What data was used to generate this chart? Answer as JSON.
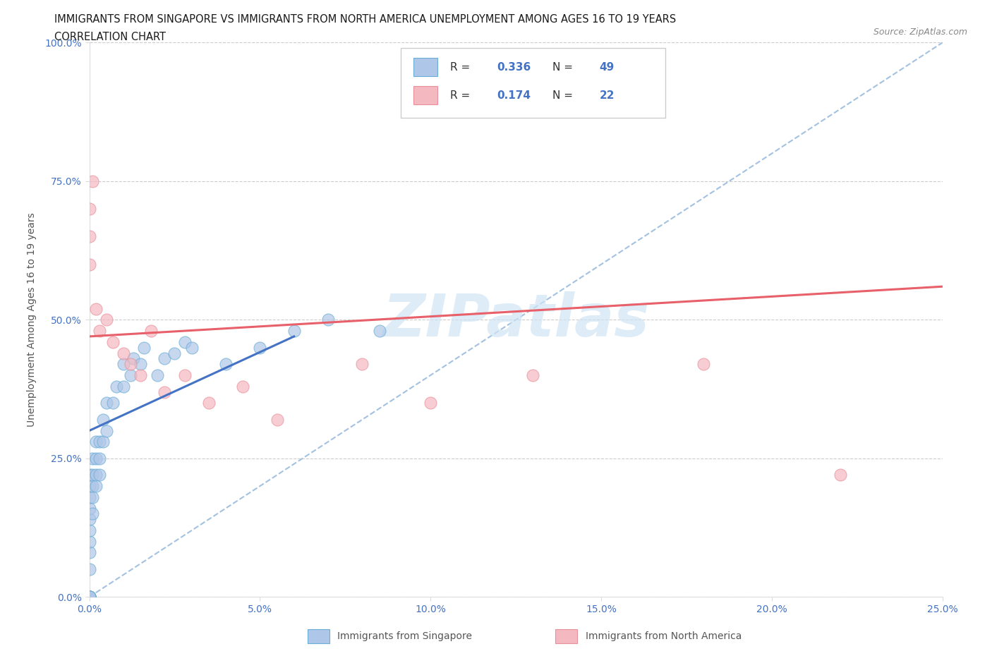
{
  "title_line1": "IMMIGRANTS FROM SINGAPORE VS IMMIGRANTS FROM NORTH AMERICA UNEMPLOYMENT AMONG AGES 16 TO 19 YEARS",
  "title_line2": "CORRELATION CHART",
  "source_text": "Source: ZipAtlas.com",
  "ylabel": "Unemployment Among Ages 16 to 19 years",
  "xlim": [
    0.0,
    0.25
  ],
  "ylim": [
    0.0,
    1.0
  ],
  "xticks": [
    0.0,
    0.05,
    0.1,
    0.15,
    0.2,
    0.25
  ],
  "yticks": [
    0.0,
    0.25,
    0.5,
    0.75,
    1.0
  ],
  "ytick_labels": [
    "0.0%",
    "25.0%",
    "50.0%",
    "75.0%",
    "100.0%"
  ],
  "xtick_labels": [
    "0.0%",
    "5.0%",
    "10.0%",
    "15.0%",
    "20.0%",
    "25.0%"
  ],
  "singapore_color": "#aec6e8",
  "singapore_edge": "#6aaed6",
  "north_america_color": "#f4b8c1",
  "north_america_edge": "#e8909a",
  "singapore_R": 0.336,
  "singapore_N": 49,
  "north_america_R": 0.174,
  "north_america_N": 22,
  "trend_singapore_color": "#4472c4",
  "trend_north_america_color": "#e8606a",
  "ref_line_color": "#99bbdd",
  "watermark_color": "#d0e4f5",
  "background_color": "#ffffff",
  "legend_color": "#4472c4",
  "singapore_x": [
    0.0,
    0.0,
    0.0,
    0.0,
    0.0,
    0.0,
    0.0,
    0.0,
    0.0,
    0.0,
    0.0,
    0.0,
    0.0,
    0.0,
    0.0,
    0.001,
    0.001,
    0.001,
    0.001,
    0.001,
    0.002,
    0.002,
    0.002,
    0.002,
    0.003,
    0.003,
    0.003,
    0.004,
    0.004,
    0.005,
    0.005,
    0.007,
    0.008,
    0.01,
    0.01,
    0.012,
    0.013,
    0.015,
    0.016,
    0.02,
    0.022,
    0.025,
    0.028,
    0.03,
    0.04,
    0.05,
    0.06,
    0.07,
    0.085
  ],
  "singapore_y": [
    0.0,
    0.0,
    0.0,
    0.0,
    0.0,
    0.0,
    0.05,
    0.08,
    0.1,
    0.12,
    0.14,
    0.16,
    0.18,
    0.2,
    0.22,
    0.15,
    0.18,
    0.2,
    0.22,
    0.25,
    0.2,
    0.22,
    0.25,
    0.28,
    0.22,
    0.25,
    0.28,
    0.28,
    0.32,
    0.3,
    0.35,
    0.35,
    0.38,
    0.38,
    0.42,
    0.4,
    0.43,
    0.42,
    0.45,
    0.4,
    0.43,
    0.44,
    0.46,
    0.45,
    0.42,
    0.45,
    0.48,
    0.5,
    0.48
  ],
  "north_america_x": [
    0.0,
    0.0,
    0.0,
    0.001,
    0.002,
    0.003,
    0.005,
    0.007,
    0.01,
    0.012,
    0.015,
    0.018,
    0.022,
    0.028,
    0.035,
    0.045,
    0.055,
    0.08,
    0.1,
    0.13,
    0.18,
    0.22
  ],
  "north_america_y": [
    0.6,
    0.65,
    0.7,
    0.75,
    0.52,
    0.48,
    0.5,
    0.46,
    0.44,
    0.42,
    0.4,
    0.48,
    0.37,
    0.4,
    0.35,
    0.38,
    0.32,
    0.42,
    0.35,
    0.4,
    0.42,
    0.22
  ],
  "sg_trend_x": [
    0.0,
    0.06
  ],
  "sg_trend_y": [
    0.3,
    0.47
  ],
  "na_trend_x": [
    0.0,
    0.25
  ],
  "na_trend_y": [
    0.47,
    0.56
  ]
}
